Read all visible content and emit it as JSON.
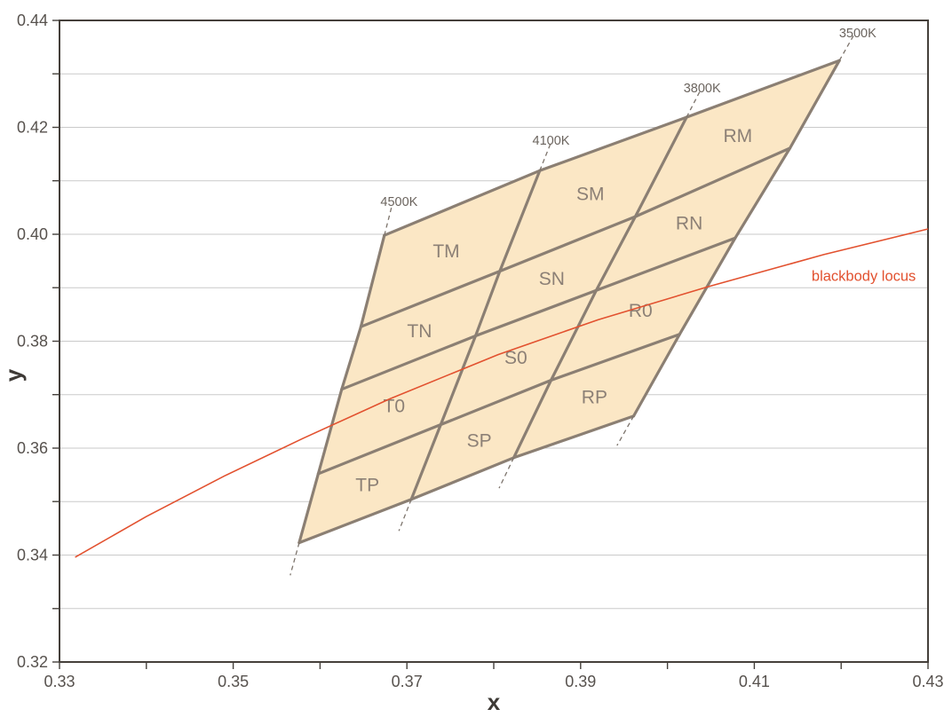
{
  "chart_data": {
    "type": "other",
    "subtype": "CIE 1931 (x,y) chromaticity diagram with CCT color-bin grid",
    "title": "",
    "xlabel": "x",
    "ylabel": "y",
    "xlim": [
      0.33,
      0.43
    ],
    "ylim": [
      0.32,
      0.44
    ],
    "tick_step": 0.01,
    "x_tick_labels": [
      "0.33",
      "0.35",
      "0.37",
      "0.39",
      "0.41",
      "0.43"
    ],
    "y_tick_labels": [
      "0.32",
      "0.34",
      "0.36",
      "0.38",
      "0.40",
      "0.42",
      "0.44"
    ],
    "grid": "horizontal gridlines every 0.01, no vertical gridlines",
    "legend": "none",
    "bin_grid": {
      "description": "quadrilateral bin mesh between iso-CCT lines (columns T,S,R) and four Duv rows (M,N,0,P)",
      "cct_lines": [
        {
          "label": "4500K",
          "label_pos": [
            0.3691,
            0.4061
          ],
          "points": [
            [
              0.3674,
              0.3998
            ],
            [
              0.3647,
              0.3827
            ],
            [
              0.3625,
              0.371
            ],
            [
              0.3598,
              0.3552
            ],
            [
              0.3576,
              0.3423
            ]
          ]
        },
        {
          "label": "4100K",
          "label_pos": [
            0.3866,
            0.4176
          ],
          "points": [
            [
              0.3853,
              0.4119
            ],
            [
              0.3807,
              0.3931
            ],
            [
              0.3779,
              0.381
            ],
            [
              0.3739,
              0.3644
            ],
            [
              0.3705,
              0.3504
            ]
          ]
        },
        {
          "label": "3800K",
          "label_pos": [
            0.404,
            0.4274
          ],
          "points": [
            [
              0.4022,
              0.4219
            ],
            [
              0.3963,
              0.4033
            ],
            [
              0.3918,
              0.3895
            ],
            [
              0.3866,
              0.3727
            ],
            [
              0.3823,
              0.3582
            ]
          ]
        },
        {
          "label": "3500K",
          "label_pos": [
            0.4219,
            0.4377
          ],
          "points": [
            [
              0.4198,
              0.4325
            ],
            [
              0.4141,
              0.4161
            ],
            [
              0.4078,
              0.3993
            ],
            [
              0.4014,
              0.3813
            ],
            [
              0.3961,
              0.366
            ]
          ]
        }
      ],
      "bins": [
        [
          "TM",
          "SM",
          "RM"
        ],
        [
          "TN",
          "SN",
          "RN"
        ],
        [
          "T0",
          "S0",
          "R0"
        ],
        [
          "TP",
          "SP",
          "RP"
        ]
      ]
    },
    "blackbody_locus": {
      "label": "blackbody locus",
      "label_pos": [
        0.4226,
        0.3921
      ],
      "points": [
        [
          0.3318,
          0.3396
        ],
        [
          0.34,
          0.3472
        ],
        [
          0.349,
          0.3548
        ],
        [
          0.358,
          0.3618
        ],
        [
          0.368,
          0.3692
        ],
        [
          0.3805,
          0.3775
        ],
        [
          0.392,
          0.384
        ],
        [
          0.4047,
          0.3902
        ],
        [
          0.418,
          0.3962
        ],
        [
          0.43,
          0.401
        ]
      ]
    }
  },
  "colors": {
    "background": "#FFFFFF",
    "plot_border": "#45403B",
    "gridline": "#CACACA",
    "tick_label": "#57524E",
    "axis_title": "#3E3A36",
    "bin_fill": "#FBE7C5",
    "bin_line": "#8B7F73",
    "bin_label": "#8C8076",
    "cct_label": "#6B645E",
    "dashed_line": "#7C736B",
    "locus": "#E2512F"
  }
}
